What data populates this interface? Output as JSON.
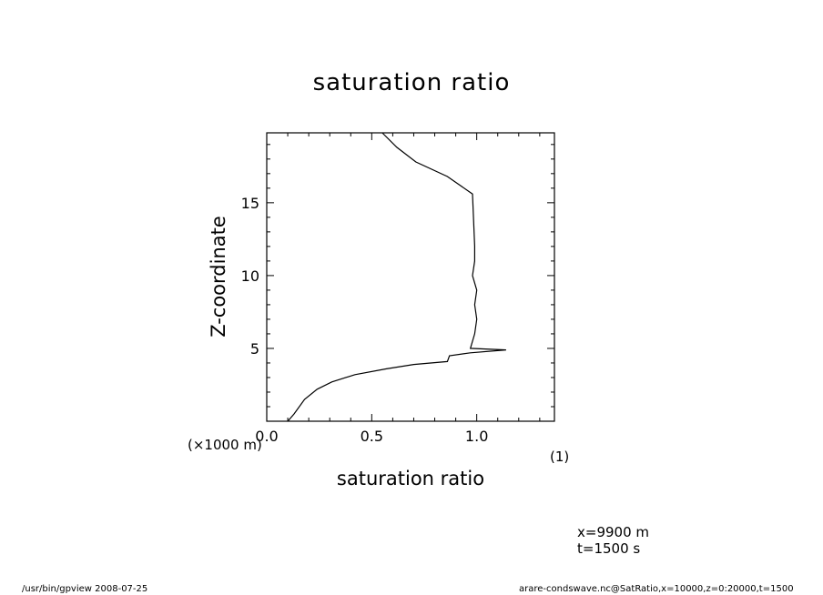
{
  "chart_data": {
    "type": "line",
    "title": "saturation ratio",
    "xlabel": "saturation ratio",
    "ylabel": "Z-coordinate",
    "y_unit_label": "(×1000 m)",
    "x_unit_label": "(1)",
    "xlim": [
      0.0,
      1.37
    ],
    "ylim": [
      0.0,
      19.8
    ],
    "x_ticks": [
      "0.0",
      "0.5",
      "1.0"
    ],
    "y_ticks": [
      "5",
      "10",
      "15"
    ],
    "grid": false,
    "legend": "none",
    "series": [
      {
        "x": [
          0.1,
          0.13,
          0.18,
          0.24,
          0.31,
          0.42,
          0.57,
          0.7,
          0.86,
          0.87,
          0.97,
          1.14,
          0.97,
          0.99,
          1.0,
          0.99,
          1.0,
          0.98,
          0.99,
          0.99,
          0.98,
          0.86,
          0.71,
          0.62,
          0.55
        ],
        "y": [
          0.0,
          0.5,
          1.5,
          2.2,
          2.7,
          3.2,
          3.6,
          3.9,
          4.1,
          4.5,
          4.7,
          4.9,
          5.0,
          6.0,
          7.0,
          8.0,
          9.0,
          10.0,
          11.0,
          12.0,
          15.6,
          16.8,
          17.8,
          18.8,
          19.8
        ]
      }
    ]
  },
  "annotations": {
    "position_x": "x=9900  m",
    "time": "t=1500  s"
  },
  "footer": {
    "left": "/usr/bin/gpview   2008-07-25",
    "right": "arare-condswave.nc@SatRatio,x=10000,z=0:20000,t=1500"
  }
}
